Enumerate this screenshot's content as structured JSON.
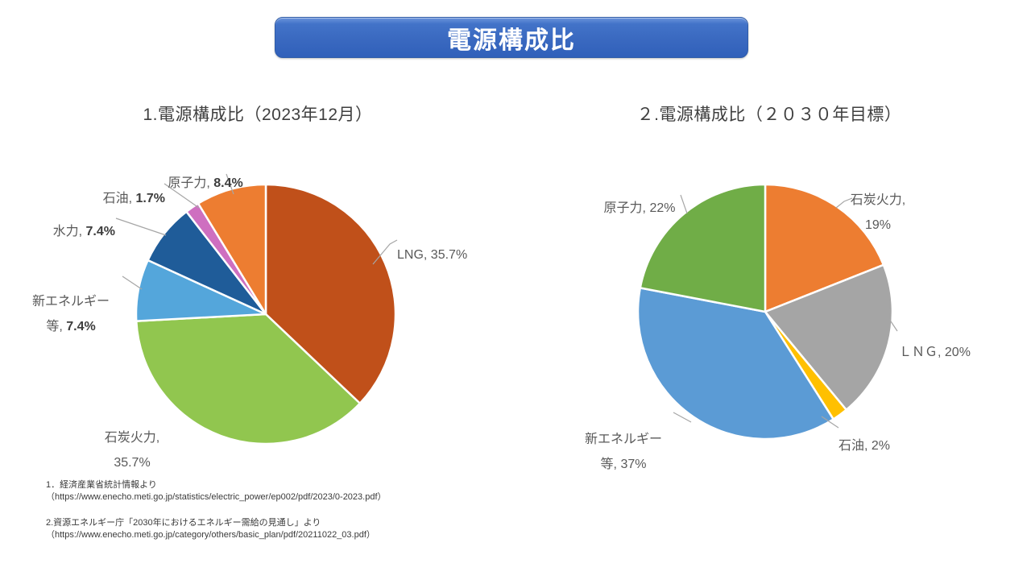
{
  "banner": {
    "title": "電源構成比"
  },
  "chart_data": [
    {
      "type": "pie",
      "title": "1.電源構成比（2023年12月）",
      "start_angle_deg": 0,
      "direction": "clockwise",
      "legend_position": "callout-labels",
      "slices": [
        {
          "key": "lng",
          "label": "LNG",
          "value": 35.7,
          "display_name": "LNG, ",
          "display_value": "35.7%",
          "color": "#C0501A"
        },
        {
          "key": "coal",
          "label": "石炭火力",
          "value": 35.7,
          "display_name": "石炭火力,\n",
          "display_value": "35.7%",
          "color": "#91C64F"
        },
        {
          "key": "new-energy",
          "label": "新エネルギー等",
          "value": 7.4,
          "display_name": "新エネルギー\n等, ",
          "display_value": "7.4%",
          "color": "#54A6DB"
        },
        {
          "key": "hydro",
          "label": "水力",
          "value": 7.4,
          "display_name": "水力, ",
          "display_value": "7.4%",
          "color": "#1F5C99"
        },
        {
          "key": "oil",
          "label": "石油",
          "value": 1.7,
          "display_name": "石油, ",
          "display_value": "1.7%",
          "color": "#CE6FC0"
        },
        {
          "key": "nuclear",
          "label": "原子力",
          "value": 8.4,
          "display_name": "原子力, ",
          "display_value": "8.4%",
          "color": "#ED7D31"
        }
      ]
    },
    {
      "type": "pie",
      "title": "２.電源構成比（２０３０年目標）",
      "start_angle_deg": 0,
      "direction": "clockwise",
      "legend_position": "callout-labels",
      "slices": [
        {
          "key": "coal",
          "label": "石炭火力",
          "value": 19,
          "display_name": "石炭火力,\n",
          "display_value": "19%",
          "color": "#ED7D31"
        },
        {
          "key": "lng",
          "label": "ＬＮＧ",
          "value": 20,
          "display_name": "ＬＮＧ, ",
          "display_value": "20%",
          "color": "#A5A5A5"
        },
        {
          "key": "oil",
          "label": "石油",
          "value": 2,
          "display_name": "石油, ",
          "display_value": "2%",
          "color": "#FFC000"
        },
        {
          "key": "new-energy",
          "label": "新エネルギー等",
          "value": 37,
          "display_name": "新エネルギー\n等, ",
          "display_value": "37%",
          "color": "#5B9BD5"
        },
        {
          "key": "nuclear",
          "label": "原子力",
          "value": 22,
          "display_name": "原子力, ",
          "display_value": "22%",
          "color": "#70AD47"
        }
      ]
    }
  ],
  "footnotes": [
    {
      "line1": "1．経済産業省統計情報より",
      "line2": "（https://www.enecho.meti.go.jp/statistics/electric_power/ep002/pdf/2023/0-2023.pdf）"
    },
    {
      "line1": "2.資源エネルギー庁「2030年におけるエネルギー需給の見通し」より",
      "line2": "（https://www.enecho.meti.go.jp/category/others/basic_plan/pdf/20211022_03.pdf）"
    }
  ]
}
